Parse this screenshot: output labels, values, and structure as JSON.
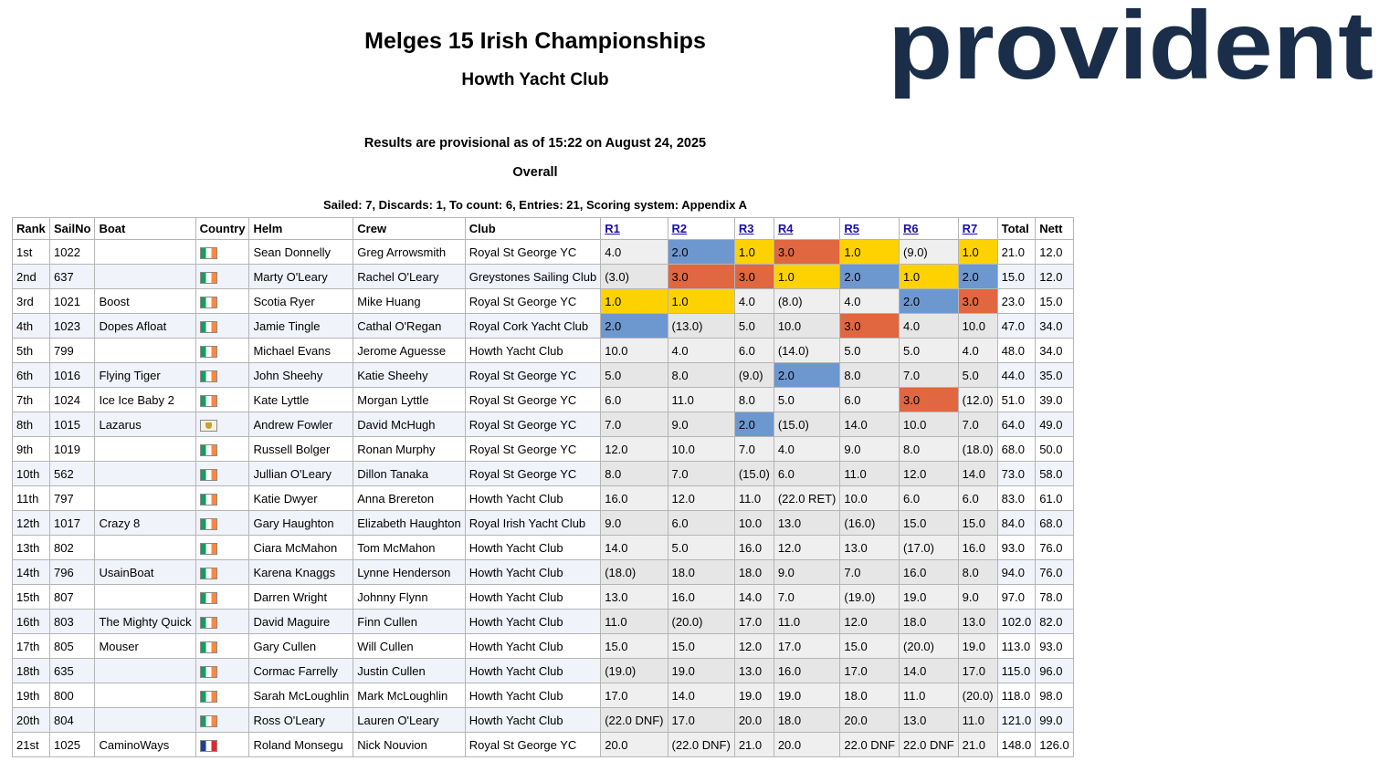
{
  "header": {
    "title": "Melges 15 Irish Championships",
    "venue": "Howth Yacht Club",
    "provisional": "Results are provisional as of 15:22 on August 24, 2025",
    "section": "Overall",
    "summary": "Sailed: 7, Discards: 1, To count: 6, Entries: 21, Scoring system: Appendix A"
  },
  "logo": {
    "text": "provident",
    "color": "#1a2e4a",
    "accent": "#e94b3c"
  },
  "colors": {
    "first": "#fed200",
    "second": "#6d97cf",
    "third": "#e0673f"
  },
  "columns": [
    "Rank",
    "SailNo",
    "Boat",
    "Country",
    "Helm",
    "Crew",
    "Club",
    "R1",
    "R2",
    "R3",
    "R4",
    "R5",
    "R6",
    "R7",
    "Total",
    "Nett"
  ],
  "rows": [
    {
      "rank": "1st",
      "sail": "1022",
      "boat": "",
      "flag": "irl",
      "helm": "Sean Donnelly",
      "crew": "Greg Arrowsmith",
      "club": "Royal St George YC",
      "races": [
        "4.0",
        "2.0",
        "1.0",
        "3.0",
        "1.0",
        "(9.0)",
        "1.0"
      ],
      "total": "21.0",
      "nett": "12.0"
    },
    {
      "rank": "2nd",
      "sail": "637",
      "boat": "",
      "flag": "irl",
      "helm": "Marty O'Leary",
      "crew": "Rachel O'Leary",
      "club": "Greystones Sailing Club",
      "races": [
        "(3.0)",
        "3.0",
        "3.0",
        "1.0",
        "2.0",
        "1.0",
        "2.0"
      ],
      "total": "15.0",
      "nett": "12.0"
    },
    {
      "rank": "3rd",
      "sail": "1021",
      "boat": "Boost",
      "flag": "irl",
      "helm": "Scotia Ryer",
      "crew": "Mike Huang",
      "club": "Royal St George YC",
      "races": [
        "1.0",
        "1.0",
        "4.0",
        "(8.0)",
        "4.0",
        "2.0",
        "3.0"
      ],
      "total": "23.0",
      "nett": "15.0"
    },
    {
      "rank": "4th",
      "sail": "1023",
      "boat": "Dopes Afloat",
      "flag": "irl",
      "helm": "Jamie Tingle",
      "crew": "Cathal O'Regan",
      "club": "Royal Cork Yacht Club",
      "races": [
        "2.0",
        "(13.0)",
        "5.0",
        "10.0",
        "3.0",
        "4.0",
        "10.0"
      ],
      "total": "47.0",
      "nett": "34.0"
    },
    {
      "rank": "5th",
      "sail": "799",
      "boat": "",
      "flag": "irl",
      "helm": "Michael Evans",
      "crew": "Jerome Aguesse",
      "club": "Howth Yacht Club",
      "races": [
        "10.0",
        "4.0",
        "6.0",
        "(14.0)",
        "5.0",
        "5.0",
        "4.0"
      ],
      "total": "48.0",
      "nett": "34.0"
    },
    {
      "rank": "6th",
      "sail": "1016",
      "boat": "Flying Tiger",
      "flag": "irl",
      "helm": "John Sheehy",
      "crew": "Katie Sheehy",
      "club": "Royal St George YC",
      "races": [
        "5.0",
        "8.0",
        "(9.0)",
        "2.0",
        "8.0",
        "7.0",
        "5.0"
      ],
      "total": "44.0",
      "nett": "35.0"
    },
    {
      "rank": "7th",
      "sail": "1024",
      "boat": "Ice Ice Baby 2",
      "flag": "irl",
      "helm": "Kate Lyttle",
      "crew": "Morgan Lyttle",
      "club": "Royal St George YC",
      "races": [
        "6.0",
        "11.0",
        "8.0",
        "5.0",
        "6.0",
        "3.0",
        "(12.0)"
      ],
      "total": "51.0",
      "nett": "39.0"
    },
    {
      "rank": "8th",
      "sail": "1015",
      "boat": "Lazarus",
      "flag": "ivi",
      "helm": "Andrew Fowler",
      "crew": "David McHugh",
      "club": "Royal St George YC",
      "races": [
        "7.0",
        "9.0",
        "2.0",
        "(15.0)",
        "14.0",
        "10.0",
        "7.0"
      ],
      "total": "64.0",
      "nett": "49.0"
    },
    {
      "rank": "9th",
      "sail": "1019",
      "boat": "",
      "flag": "irl",
      "helm": "Russell Bolger",
      "crew": "Ronan Murphy",
      "club": "Royal St George YC",
      "races": [
        "12.0",
        "10.0",
        "7.0",
        "4.0",
        "9.0",
        "8.0",
        "(18.0)"
      ],
      "total": "68.0",
      "nett": "50.0"
    },
    {
      "rank": "10th",
      "sail": "562",
      "boat": "",
      "flag": "irl",
      "helm": "Jullian O'Leary",
      "crew": "Dillon Tanaka",
      "club": "Royal St George YC",
      "races": [
        "8.0",
        "7.0",
        "(15.0)",
        "6.0",
        "11.0",
        "12.0",
        "14.0"
      ],
      "total": "73.0",
      "nett": "58.0"
    },
    {
      "rank": "11th",
      "sail": "797",
      "boat": "",
      "flag": "irl",
      "helm": "Katie Dwyer",
      "crew": "Anna Brereton",
      "club": "Howth Yacht Club",
      "races": [
        "16.0",
        "12.0",
        "11.0",
        "(22.0 RET)",
        "10.0",
        "6.0",
        "6.0"
      ],
      "total": "83.0",
      "nett": "61.0"
    },
    {
      "rank": "12th",
      "sail": "1017",
      "boat": "Crazy 8",
      "flag": "irl",
      "helm": "Gary Haughton",
      "crew": "Elizabeth Haughton",
      "club": "Royal Irish Yacht Club",
      "races": [
        "9.0",
        "6.0",
        "10.0",
        "13.0",
        "(16.0)",
        "15.0",
        "15.0"
      ],
      "total": "84.0",
      "nett": "68.0"
    },
    {
      "rank": "13th",
      "sail": "802",
      "boat": "",
      "flag": "irl",
      "helm": "Ciara McMahon",
      "crew": "Tom McMahon",
      "club": "Howth Yacht Club",
      "races": [
        "14.0",
        "5.0",
        "16.0",
        "12.0",
        "13.0",
        "(17.0)",
        "16.0"
      ],
      "total": "93.0",
      "nett": "76.0"
    },
    {
      "rank": "14th",
      "sail": "796",
      "boat": "UsainBoat",
      "flag": "irl",
      "helm": "Karena Knaggs",
      "crew": "Lynne Henderson",
      "club": "Howth Yacht Club",
      "races": [
        "(18.0)",
        "18.0",
        "18.0",
        "9.0",
        "7.0",
        "16.0",
        "8.0"
      ],
      "total": "94.0",
      "nett": "76.0"
    },
    {
      "rank": "15th",
      "sail": "807",
      "boat": "",
      "flag": "irl",
      "helm": "Darren Wright",
      "crew": "Johnny Flynn",
      "club": "Howth Yacht Club",
      "races": [
        "13.0",
        "16.0",
        "14.0",
        "7.0",
        "(19.0)",
        "19.0",
        "9.0"
      ],
      "total": "97.0",
      "nett": "78.0"
    },
    {
      "rank": "16th",
      "sail": "803",
      "boat": "The Mighty Quick",
      "flag": "irl",
      "helm": "David Maguire",
      "crew": "Finn Cullen",
      "club": "Howth Yacht Club",
      "races": [
        "11.0",
        "(20.0)",
        "17.0",
        "11.0",
        "12.0",
        "18.0",
        "13.0"
      ],
      "total": "102.0",
      "nett": "82.0"
    },
    {
      "rank": "17th",
      "sail": "805",
      "boat": "Mouser",
      "flag": "irl",
      "helm": "Gary Cullen",
      "crew": "Will Cullen",
      "club": "Howth Yacht Club",
      "races": [
        "15.0",
        "15.0",
        "12.0",
        "17.0",
        "15.0",
        "(20.0)",
        "19.0"
      ],
      "total": "113.0",
      "nett": "93.0"
    },
    {
      "rank": "18th",
      "sail": "635",
      "boat": "",
      "flag": "irl",
      "helm": "Cormac Farrelly",
      "crew": "Justin Cullen",
      "club": "Howth Yacht Club",
      "races": [
        "(19.0)",
        "19.0",
        "13.0",
        "16.0",
        "17.0",
        "14.0",
        "17.0"
      ],
      "total": "115.0",
      "nett": "96.0"
    },
    {
      "rank": "19th",
      "sail": "800",
      "boat": "",
      "flag": "irl",
      "helm": "Sarah McLoughlin",
      "crew": "Mark McLoughlin",
      "club": "Howth Yacht Club",
      "races": [
        "17.0",
        "14.0",
        "19.0",
        "19.0",
        "18.0",
        "11.0",
        "(20.0)"
      ],
      "total": "118.0",
      "nett": "98.0"
    },
    {
      "rank": "20th",
      "sail": "804",
      "boat": "",
      "flag": "irl",
      "helm": "Ross O'Leary",
      "crew": "Lauren O'Leary",
      "club": "Howth Yacht Club",
      "races": [
        "(22.0 DNF)",
        "17.0",
        "20.0",
        "18.0",
        "20.0",
        "13.0",
        "11.0"
      ],
      "total": "121.0",
      "nett": "99.0"
    },
    {
      "rank": "21st",
      "sail": "1025",
      "boat": "CaminoWays",
      "flag": "fra",
      "helm": "Roland Monsegu",
      "crew": "Nick Nouvion",
      "club": "Royal St George YC",
      "races": [
        "20.0",
        "(22.0 DNF)",
        "21.0",
        "20.0",
        "22.0 DNF",
        "22.0 DNF",
        "21.0"
      ],
      "total": "148.0",
      "nett": "126.0"
    }
  ]
}
